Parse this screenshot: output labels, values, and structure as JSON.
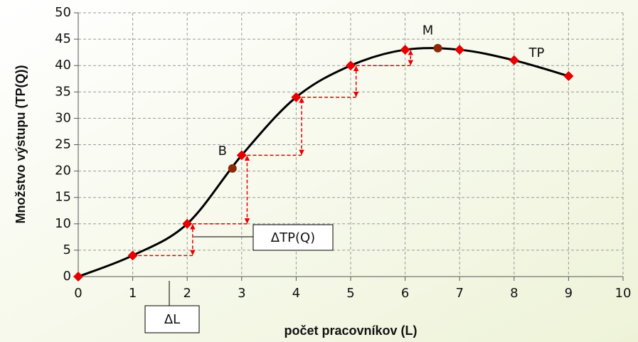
{
  "chart_data": {
    "type": "line",
    "xlabel": "počet pracovníkov (L)",
    "ylabel": "Množstvo výstupu (TP(Q))",
    "x": [
      0,
      1,
      2,
      3,
      4,
      5,
      6,
      7,
      8,
      9
    ],
    "series": [
      {
        "name": "TP",
        "color": "#000000",
        "marker_color": "#e60000",
        "values": [
          0,
          4,
          10,
          23,
          34,
          40,
          43,
          43,
          41,
          38
        ]
      }
    ],
    "xlim": [
      0,
      10
    ],
    "xticks": [
      0,
      1,
      2,
      3,
      4,
      5,
      6,
      7,
      8,
      9,
      10
    ],
    "ylim": [
      0,
      50
    ],
    "yticks": [
      0,
      5,
      10,
      15,
      20,
      25,
      30,
      35,
      40,
      45,
      50
    ],
    "grid": true,
    "annotations": [
      {
        "text": "B",
        "x": 2.83,
        "y": 20.5,
        "color": "#8b2a0a"
      },
      {
        "text": "M",
        "x": 6.6,
        "y": 43.3,
        "color": "#8b2a0a"
      }
    ],
    "callouts": [
      {
        "text": "ΔTP(Q)"
      },
      {
        "text": "ΔL"
      }
    ]
  }
}
